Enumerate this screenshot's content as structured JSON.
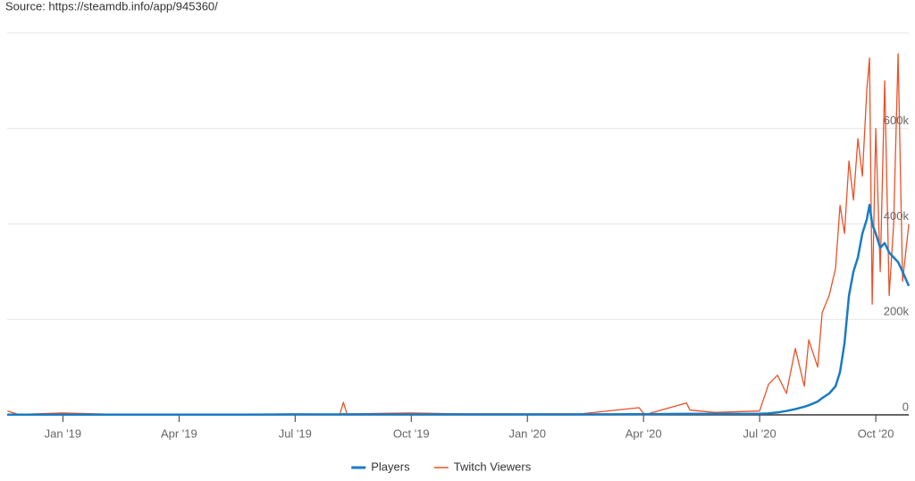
{
  "chart_data": {
    "type": "line",
    "source": "Source: https://steamdb.info/app/945360/",
    "x": [
      2018.8808,
      2018.9038,
      2019.0,
      2019.1154,
      2019.2519,
      2019.3846,
      2019.5,
      2019.5962,
      2019.6038,
      2019.6115,
      2019.7481,
      2019.8654,
      2020.0,
      2020.1154,
      2020.2404,
      2020.25,
      2020.2596,
      2020.3423,
      2020.35,
      2020.4038,
      2020.5,
      2020.5192,
      2020.5385,
      2020.5577,
      2020.5769,
      2020.5962,
      2020.6058,
      2020.625,
      2020.6346,
      2020.65,
      2020.6635,
      2020.6731,
      2020.6827,
      2020.6923,
      2020.7019,
      2020.7115,
      2020.7212,
      2020.7308,
      2020.7365,
      2020.7423,
      2020.75,
      2020.7596,
      2020.7692,
      2020.7788,
      2020.7885,
      2020.7981,
      2020.8077,
      2020.8212
    ],
    "series": [
      {
        "name": "Players",
        "color": "#1a7bc4",
        "values": [
          500,
          500,
          500,
          500,
          500,
          500,
          1000,
          1000,
          1500,
          1000,
          1000,
          1000,
          1000,
          1000,
          1500,
          1500,
          1500,
          2000,
          2000,
          2000,
          2500,
          3000,
          5000,
          8000,
          12000,
          17000,
          20000,
          28000,
          35000,
          45000,
          60000,
          90000,
          150000,
          250000,
          300000,
          330000,
          380000,
          410000,
          440000,
          400000,
          380000,
          350000,
          360000,
          340000,
          330000,
          320000,
          300000,
          270000
        ]
      },
      {
        "name": "Twitch Viewers",
        "color": "#e8522a",
        "values": [
          8000,
          1000,
          4000,
          1000,
          1000,
          1000,
          2000,
          1000,
          26000,
          2000,
          4000,
          2000,
          2000,
          2000,
          15000,
          3000,
          2000,
          25000,
          10000,
          5000,
          8000,
          64000,
          83000,
          45000,
          139000,
          60000,
          157000,
          100000,
          214000,
          251000,
          307000,
          439000,
          380000,
          532000,
          450000,
          579000,
          500000,
          682000,
          748000,
          232000,
          600000,
          300000,
          700000,
          250000,
          400000,
          757000,
          280000,
          400000
        ]
      }
    ],
    "xlim": [
      2018.88,
      2020.821
    ],
    "xticks": [
      {
        "value": 2019,
        "label": "Jan '19"
      },
      {
        "value": 2019.25,
        "label": "Apr '19"
      },
      {
        "value": 2019.5,
        "label": "Jul '19"
      },
      {
        "value": 2019.75,
        "label": "Oct '19"
      },
      {
        "value": 2020,
        "label": "Jan '20"
      },
      {
        "value": 2020.25,
        "label": "Apr '20"
      },
      {
        "value": 2020.5,
        "label": "Jul '20"
      },
      {
        "value": 2020.75,
        "label": "Oct '20"
      }
    ],
    "ylim": [
      0,
      800000
    ],
    "yticks": [
      0,
      {
        "value": 200000,
        "label": "200k"
      },
      {
        "value": 400000,
        "label": "400k"
      },
      {
        "value": 600000,
        "label": "600k"
      }
    ],
    "grid": true
  }
}
